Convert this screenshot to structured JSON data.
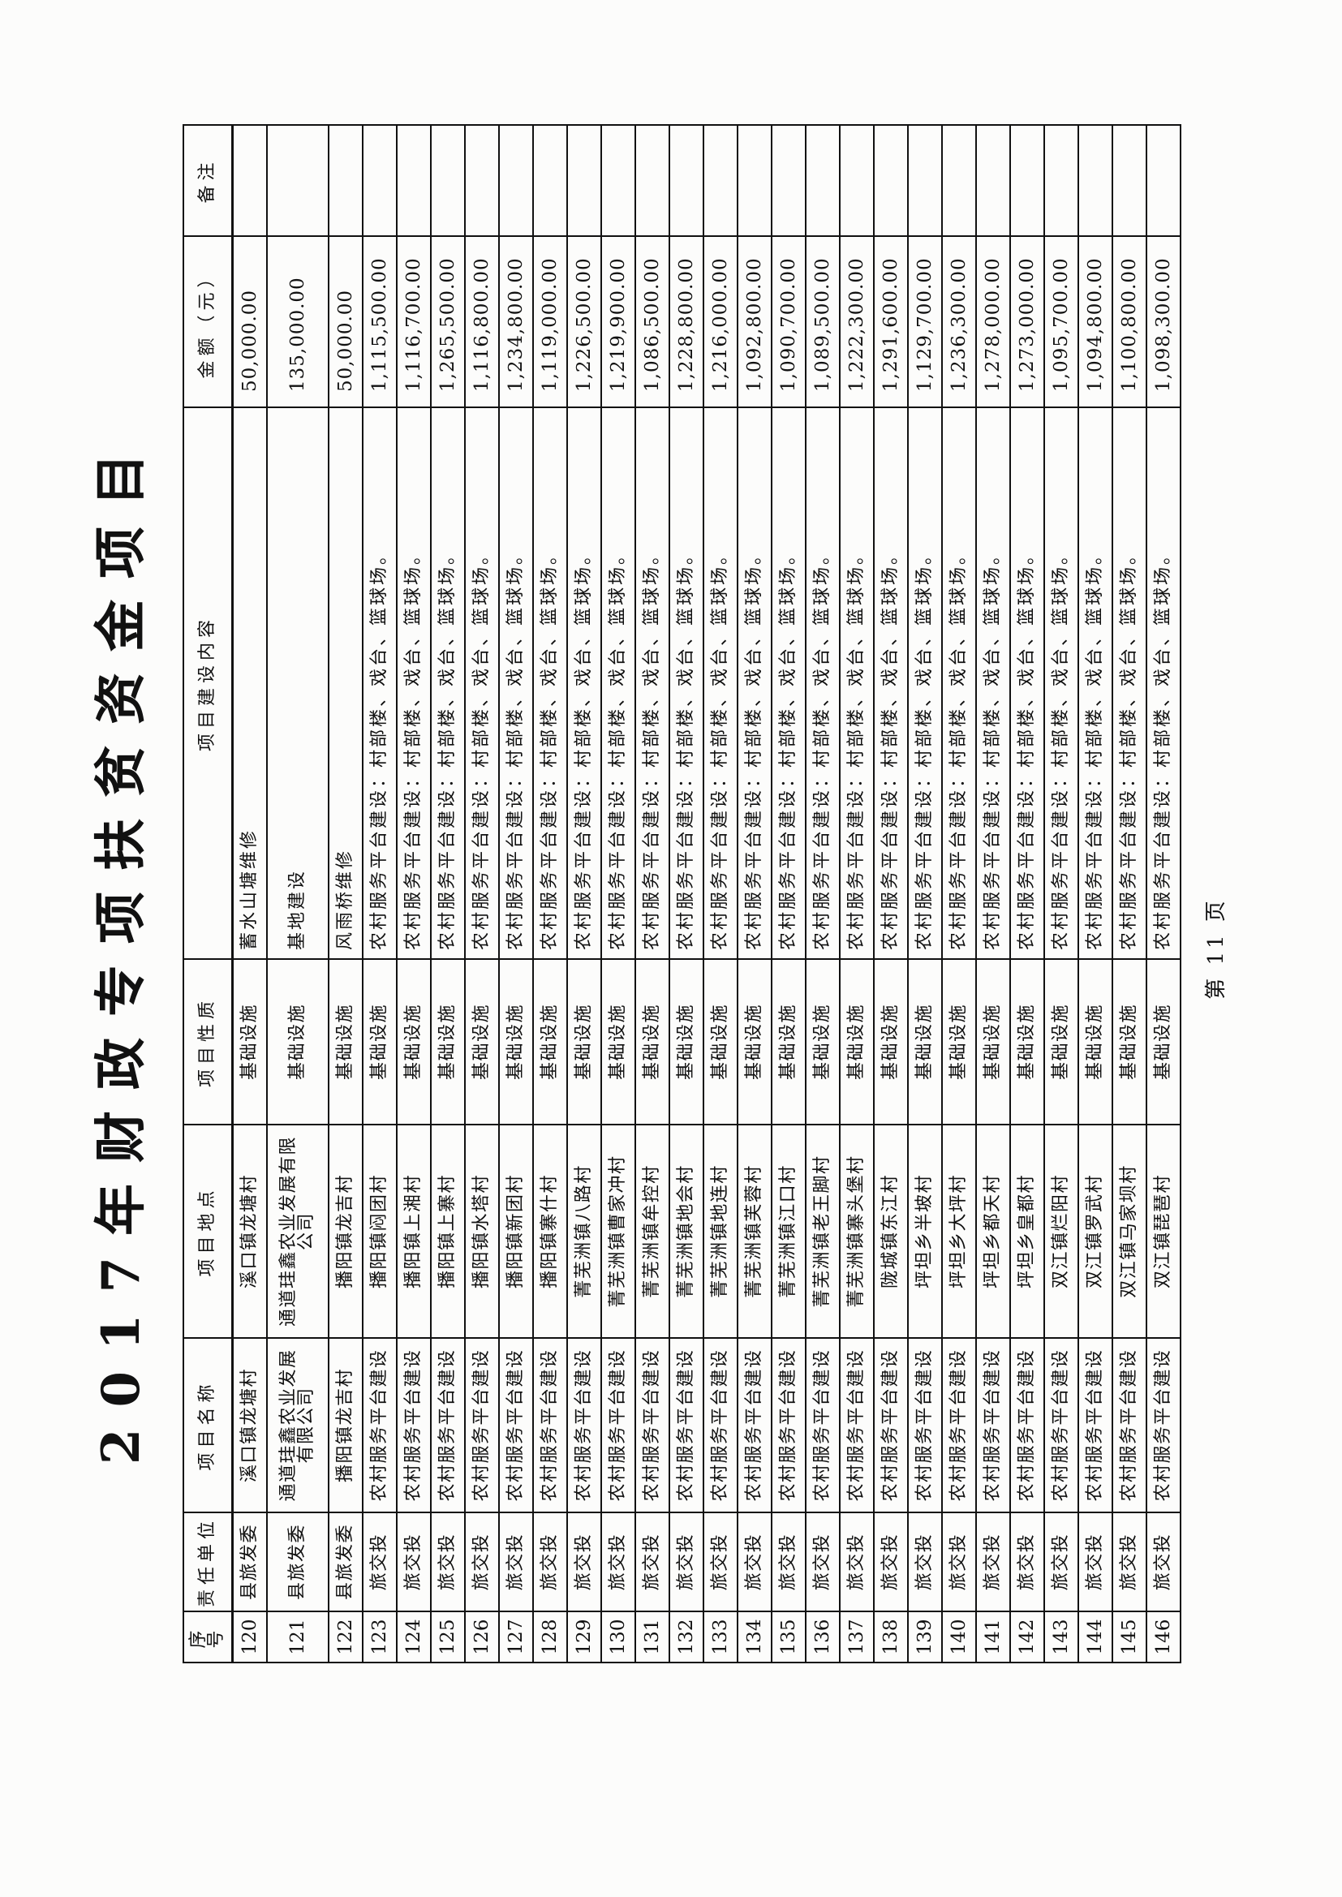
{
  "title": "2017年财政专项扶贫资金项目",
  "footer": "第 11 页",
  "columns": [
    "序号",
    "责任单位",
    "项目名称",
    "项目地点",
    "项目性质",
    "项目建设内容",
    "金额（元）",
    "备注"
  ],
  "rows": [
    {
      "no": "120",
      "unit": "县旅发委",
      "name": "溪口镇龙塘村",
      "place": "溪口镇龙塘村",
      "type": "基础设施",
      "content": "蓄水山塘维修",
      "amount": "50,000.00",
      "note": ""
    },
    {
      "no": "121",
      "unit": "县旅发委",
      "name": "通道珪鑫农业发展有限公司",
      "place": "通道珪鑫农业发展有限公司",
      "type": "基础设施",
      "content": "基地建设",
      "amount": "135,000.00",
      "note": ""
    },
    {
      "no": "122",
      "unit": "县旅发委",
      "name": "播阳镇龙吉村",
      "place": "播阳镇龙吉村",
      "type": "基础设施",
      "content": "风雨桥维修",
      "amount": "50,000.00",
      "note": ""
    },
    {
      "no": "123",
      "unit": "旅交投",
      "name": "农村服务平台建设",
      "place": "播阳镇闷团村",
      "type": "基础设施",
      "content": "农村服务平台建设：村部楼、戏台、篮球场。",
      "amount": "1,115,500.00",
      "note": ""
    },
    {
      "no": "124",
      "unit": "旅交投",
      "name": "农村服务平台建设",
      "place": "播阳镇上湘村",
      "type": "基础设施",
      "content": "农村服务平台建设：村部楼、戏台、篮球场。",
      "amount": "1,116,700.00",
      "note": ""
    },
    {
      "no": "125",
      "unit": "旅交投",
      "name": "农村服务平台建设",
      "place": "播阳镇上寨村",
      "type": "基础设施",
      "content": "农村服务平台建设：村部楼、戏台、篮球场。",
      "amount": "1,265,500.00",
      "note": ""
    },
    {
      "no": "126",
      "unit": "旅交投",
      "name": "农村服务平台建设",
      "place": "播阳镇水塔村",
      "type": "基础设施",
      "content": "农村服务平台建设：村部楼、戏台、篮球场。",
      "amount": "1,116,800.00",
      "note": ""
    },
    {
      "no": "127",
      "unit": "旅交投",
      "name": "农村服务平台建设",
      "place": "播阳镇新团村",
      "type": "基础设施",
      "content": "农村服务平台建设：村部楼、戏台、篮球场。",
      "amount": "1,234,800.00",
      "note": ""
    },
    {
      "no": "128",
      "unit": "旅交投",
      "name": "农村服务平台建设",
      "place": "播阳镇寨什村",
      "type": "基础设施",
      "content": "农村服务平台建设：村部楼、戏台、篮球场。",
      "amount": "1,119,000.00",
      "note": ""
    },
    {
      "no": "129",
      "unit": "旅交投",
      "name": "农村服务平台建设",
      "place": "菁芜洲镇八路村",
      "type": "基础设施",
      "content": "农村服务平台建设：村部楼、戏台、篮球场。",
      "amount": "1,226,500.00",
      "note": ""
    },
    {
      "no": "130",
      "unit": "旅交投",
      "name": "农村服务平台建设",
      "place": "菁芜洲镇曹家冲村",
      "type": "基础设施",
      "content": "农村服务平台建设：村部楼、戏台、篮球场。",
      "amount": "1,219,900.00",
      "note": ""
    },
    {
      "no": "131",
      "unit": "旅交投",
      "name": "农村服务平台建设",
      "place": "菁芜洲镇牟控村",
      "type": "基础设施",
      "content": "农村服务平台建设：村部楼、戏台、篮球场。",
      "amount": "1,086,500.00",
      "note": ""
    },
    {
      "no": "132",
      "unit": "旅交投",
      "name": "农村服务平台建设",
      "place": "菁芜洲镇地会村",
      "type": "基础设施",
      "content": "农村服务平台建设：村部楼、戏台、篮球场。",
      "amount": "1,228,800.00",
      "note": ""
    },
    {
      "no": "133",
      "unit": "旅交投",
      "name": "农村服务平台建设",
      "place": "菁芜洲镇地连村",
      "type": "基础设施",
      "content": "农村服务平台建设：村部楼、戏台、篮球场。",
      "amount": "1,216,000.00",
      "note": ""
    },
    {
      "no": "134",
      "unit": "旅交投",
      "name": "农村服务平台建设",
      "place": "菁芜洲镇芙蓉村",
      "type": "基础设施",
      "content": "农村服务平台建设：村部楼、戏台、篮球场。",
      "amount": "1,092,800.00",
      "note": ""
    },
    {
      "no": "135",
      "unit": "旅交投",
      "name": "农村服务平台建设",
      "place": "菁芜洲镇江口村",
      "type": "基础设施",
      "content": "农村服务平台建设：村部楼、戏台、篮球场。",
      "amount": "1,090,700.00",
      "note": ""
    },
    {
      "no": "136",
      "unit": "旅交投",
      "name": "农村服务平台建设",
      "place": "菁芜洲镇老王脚村",
      "type": "基础设施",
      "content": "农村服务平台建设：村部楼、戏台、篮球场。",
      "amount": "1,089,500.00",
      "note": ""
    },
    {
      "no": "137",
      "unit": "旅交投",
      "name": "农村服务平台建设",
      "place": "菁芜洲镇寨头堡村",
      "type": "基础设施",
      "content": "农村服务平台建设：村部楼、戏台、篮球场。",
      "amount": "1,222,300.00",
      "note": ""
    },
    {
      "no": "138",
      "unit": "旅交投",
      "name": "农村服务平台建设",
      "place": "陇城镇东江村",
      "type": "基础设施",
      "content": "农村服务平台建设：村部楼、戏台、篮球场。",
      "amount": "1,291,600.00",
      "note": ""
    },
    {
      "no": "139",
      "unit": "旅交投",
      "name": "农村服务平台建设",
      "place": "坪坦乡半坡村",
      "type": "基础设施",
      "content": "农村服务平台建设：村部楼、戏台、篮球场。",
      "amount": "1,129,700.00",
      "note": ""
    },
    {
      "no": "140",
      "unit": "旅交投",
      "name": "农村服务平台建设",
      "place": "坪坦乡大坪村",
      "type": "基础设施",
      "content": "农村服务平台建设：村部楼、戏台、篮球场。",
      "amount": "1,236,300.00",
      "note": ""
    },
    {
      "no": "141",
      "unit": "旅交投",
      "name": "农村服务平台建设",
      "place": "坪坦乡都天村",
      "type": "基础设施",
      "content": "农村服务平台建设：村部楼、戏台、篮球场。",
      "amount": "1,278,000.00",
      "note": ""
    },
    {
      "no": "142",
      "unit": "旅交投",
      "name": "农村服务平台建设",
      "place": "坪坦乡皇都村",
      "type": "基础设施",
      "content": "农村服务平台建设：村部楼、戏台、篮球场。",
      "amount": "1,273,000.00",
      "note": ""
    },
    {
      "no": "143",
      "unit": "旅交投",
      "name": "农村服务平台建设",
      "place": "双江镇烂阳村",
      "type": "基础设施",
      "content": "农村服务平台建设：村部楼、戏台、篮球场。",
      "amount": "1,095,700.00",
      "note": ""
    },
    {
      "no": "144",
      "unit": "旅交投",
      "name": "农村服务平台建设",
      "place": "双江镇罗武村",
      "type": "基础设施",
      "content": "农村服务平台建设：村部楼、戏台、篮球场。",
      "amount": "1,094,800.00",
      "note": ""
    },
    {
      "no": "145",
      "unit": "旅交投",
      "name": "农村服务平台建设",
      "place": "双江镇马家坝村",
      "type": "基础设施",
      "content": "农村服务平台建设：村部楼、戏台、篮球场。",
      "amount": "1,100,800.00",
      "note": ""
    },
    {
      "no": "146",
      "unit": "旅交投",
      "name": "农村服务平台建设",
      "place": "双江镇琵琶村",
      "type": "基础设施",
      "content": "农村服务平台建设：村部楼、戏台、篮球场。",
      "amount": "1,098,300.00",
      "note": ""
    }
  ]
}
